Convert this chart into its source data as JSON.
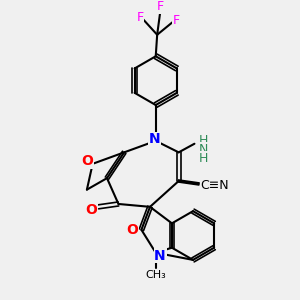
{
  "background_color": "#f0f0f0",
  "atom_colors": {
    "N": "#0000ff",
    "O": "#ff0000",
    "F": "#ff00ff",
    "C": "#000000",
    "H": "#2e8b57"
  },
  "bond_color": "#000000",
  "title": "",
  "figsize": [
    3.0,
    3.0
  ],
  "dpi": 100
}
